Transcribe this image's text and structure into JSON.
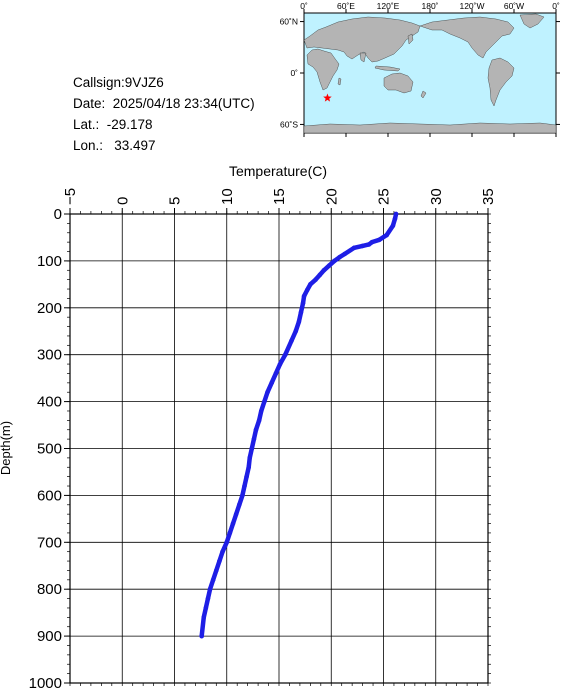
{
  "info": {
    "callsign": "Callsign:9VJZ6",
    "date": "Date:  2025/04/18 23:34(UTC)",
    "lat": "Lat.:  -29.178",
    "lon": "Lon.:   33.497"
  },
  "map": {
    "lon_labels": [
      "0˚",
      "60˚E",
      "120˚E",
      "180˚",
      "120˚W",
      "60˚W",
      "0˚"
    ],
    "lat_labels": [
      "60˚N",
      "0˚",
      "60˚S"
    ],
    "station": {
      "lat": -29.178,
      "lon": 33.497
    },
    "ocean_color": "#bff2ff",
    "land_color": "#b4b4b4",
    "marker_color": "#ff0000"
  },
  "chart_data": {
    "type": "line",
    "xlabel": "Temperature(C)",
    "ylabel": "Depth(m)",
    "xlim": [
      -5,
      35
    ],
    "ylim": [
      0,
      1000
    ],
    "y_inverted": true,
    "x_ticks": [
      -5,
      0,
      5,
      10,
      15,
      20,
      25,
      30,
      35
    ],
    "y_ticks": [
      0,
      100,
      200,
      300,
      400,
      500,
      600,
      700,
      800,
      900,
      1000
    ],
    "x_tick_labels": [
      "−5",
      "0",
      "5",
      "10",
      "15",
      "20",
      "25",
      "30",
      "35"
    ],
    "y_tick_labels": [
      "0",
      "100",
      "200",
      "300",
      "400",
      "500",
      "600",
      "700",
      "800",
      "900",
      "1000"
    ],
    "grid": true,
    "series_color": "#1e1ee6",
    "series": [
      {
        "x": [
          26.2,
          26.1,
          25.9,
          25.3,
          24.6,
          23.9,
          23.6,
          23.0,
          22.2,
          21.3,
          20.8,
          20.3,
          19.8,
          19.3,
          18.9,
          18.5,
          18.0,
          17.7,
          17.4,
          17.3,
          17.1,
          16.9,
          16.6,
          16.2,
          15.6,
          15.1,
          14.7,
          14.3,
          13.9,
          13.6,
          13.3,
          13.1,
          12.8,
          12.6,
          12.4,
          12.2,
          12.1,
          11.9,
          11.7,
          11.5,
          11.2,
          10.9,
          10.6,
          10.3,
          10.0,
          9.6,
          9.3,
          9.0,
          8.7,
          8.4,
          8.2,
          8.0,
          7.8,
          7.6
        ],
        "y": [
          0,
          10,
          25,
          45,
          55,
          60,
          65,
          68,
          72,
          85,
          92,
          100,
          110,
          120,
          130,
          140,
          150,
          162,
          175,
          190,
          210,
          230,
          250,
          270,
          300,
          320,
          340,
          360,
          380,
          400,
          420,
          440,
          460,
          480,
          500,
          520,
          540,
          560,
          580,
          600,
          620,
          640,
          660,
          680,
          700,
          720,
          740,
          760,
          780,
          800,
          820,
          840,
          860,
          900
        ]
      }
    ]
  }
}
